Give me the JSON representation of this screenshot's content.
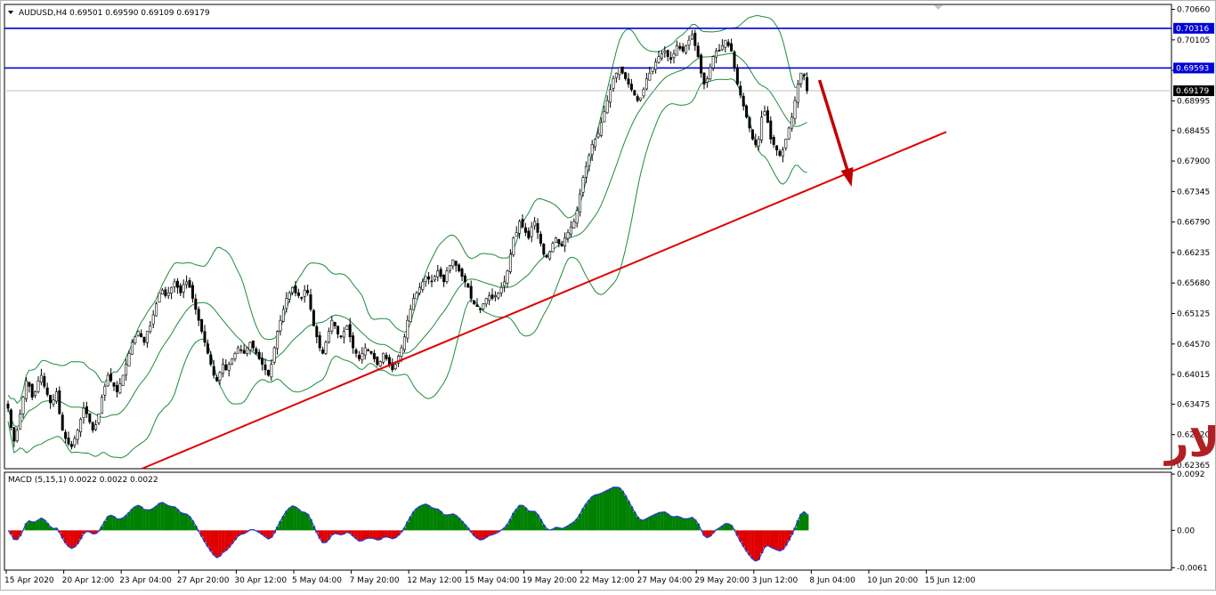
{
  "chart_data": [
    {
      "type": "candlestick",
      "symbol_header": "AUDUSD,H4",
      "ohlc_header": "0.69501 0.69590 0.69109 0.69179",
      "yticks": [
        "0.70660",
        "0.70105",
        "0.69550",
        "0.68995",
        "0.68455",
        "0.67900",
        "0.67345",
        "0.66790",
        "0.66235",
        "0.65680",
        "0.65125",
        "0.64570",
        "0.64015",
        "0.63475",
        "0.62920",
        "0.62365"
      ],
      "ylim": [
        0.623,
        0.7075
      ],
      "xlabels": [
        "15 Apr 2020",
        "20 Apr 12:00",
        "23 Apr 04:00",
        "27 Apr 20:00",
        "30 Apr 12:00",
        "5 May 04:00",
        "7 May 20:00",
        "12 May 12:00",
        "15 May 04:00",
        "19 May 20:00",
        "22 May 12:00",
        "27 May 04:00",
        "29 May 20:00",
        "3 Jun 12:00",
        "8 Jun 04:00",
        "10 Jun 20:00",
        "15 Jun 12:00"
      ],
      "price_labels": [
        {
          "value": 0.70316,
          "text": "0.70316",
          "color": "#0000d8"
        },
        {
          "value": 0.69593,
          "text": "0.69593",
          "color": "#0000d8"
        },
        {
          "value": 0.69179,
          "text": "0.69179",
          "color": "#000000"
        }
      ],
      "horizontal_lines": [
        {
          "value": 0.70316,
          "color": "#0000d8"
        },
        {
          "value": 0.69593,
          "color": "#0000d8"
        },
        {
          "value": 0.69179,
          "color": "#c0c0c0"
        }
      ],
      "trendline": {
        "from": {
          "bar": 0,
          "value": 0.6128
        },
        "to": {
          "bar": 310,
          "value": 0.6843
        },
        "color": "#e00000"
      },
      "annotation_arrow": {
        "color": "#c00000"
      },
      "annotation_text": "أسترالي دولار",
      "bollinger_color": "#1c8c3c",
      "closes": [
        0.634,
        0.6305,
        0.628,
        0.63,
        0.633,
        0.636,
        0.639,
        0.638,
        0.636,
        0.637,
        0.639,
        0.64,
        0.638,
        0.6365,
        0.635,
        0.6355,
        0.637,
        0.633,
        0.63,
        0.6285,
        0.6275,
        0.627,
        0.6285,
        0.63,
        0.632,
        0.634,
        0.633,
        0.6315,
        0.63,
        0.631,
        0.633,
        0.636,
        0.638,
        0.64,
        0.639,
        0.638,
        0.637,
        0.6385,
        0.64,
        0.642,
        0.644,
        0.646,
        0.647,
        0.648,
        0.647,
        0.646,
        0.648,
        0.649,
        0.651,
        0.653,
        0.655,
        0.6555,
        0.6545,
        0.655,
        0.656,
        0.657,
        0.656,
        0.655,
        0.6565,
        0.657,
        0.656,
        0.654,
        0.652,
        0.65,
        0.648,
        0.646,
        0.644,
        0.642,
        0.64,
        0.639,
        0.6405,
        0.642,
        0.641,
        0.642,
        0.643,
        0.644,
        0.645,
        0.6445,
        0.644,
        0.645,
        0.646,
        0.645,
        0.644,
        0.643,
        0.642,
        0.641,
        0.64,
        0.642,
        0.645,
        0.648,
        0.65,
        0.652,
        0.654,
        0.655,
        0.656,
        0.655,
        0.6545,
        0.654,
        0.6555,
        0.655,
        0.652,
        0.649,
        0.647,
        0.645,
        0.644,
        0.646,
        0.648,
        0.65,
        0.649,
        0.6475,
        0.647,
        0.648,
        0.649,
        0.647,
        0.645,
        0.644,
        0.643,
        0.644,
        0.645,
        0.6445,
        0.644,
        0.643,
        0.642,
        0.6425,
        0.644,
        0.643,
        0.642,
        0.641,
        0.642,
        0.6435,
        0.645,
        0.647,
        0.65,
        0.652,
        0.654,
        0.655,
        0.656,
        0.657,
        0.658,
        0.6575,
        0.657,
        0.658,
        0.659,
        0.658,
        0.657,
        0.659,
        0.66,
        0.661,
        0.66,
        0.659,
        0.658,
        0.657,
        0.656,
        0.654,
        0.653,
        0.6525,
        0.652,
        0.653,
        0.654,
        0.6545,
        0.654,
        0.6545,
        0.655,
        0.656,
        0.657,
        0.659,
        0.662,
        0.665,
        0.666,
        0.668,
        0.667,
        0.666,
        0.665,
        0.667,
        0.668,
        0.666,
        0.664,
        0.662,
        0.6615,
        0.6625,
        0.664,
        0.665,
        0.664,
        0.6635,
        0.665,
        0.666,
        0.667,
        0.668,
        0.67,
        0.673,
        0.676,
        0.678,
        0.68,
        0.682,
        0.683,
        0.684,
        0.686,
        0.688,
        0.69,
        0.692,
        0.694,
        0.695,
        0.696,
        0.695,
        0.694,
        0.693,
        0.692,
        0.691,
        0.69,
        0.6905,
        0.692,
        0.694,
        0.695,
        0.696,
        0.697,
        0.698,
        0.6985,
        0.699,
        0.698,
        0.6975,
        0.6985,
        0.7,
        0.6995,
        0.699,
        0.7,
        0.701,
        0.702,
        0.7,
        0.698,
        0.695,
        0.693,
        0.694,
        0.696,
        0.698,
        0.699,
        0.699,
        0.7,
        0.701,
        0.7,
        0.699,
        0.696,
        0.693,
        0.691,
        0.689,
        0.687,
        0.685,
        0.683,
        0.682,
        0.683,
        0.687,
        0.688,
        0.686,
        0.683,
        0.682,
        0.681,
        0.68,
        0.681,
        0.683,
        0.685,
        0.687,
        0.69,
        0.693,
        0.695,
        0.6945,
        0.6918
      ]
    },
    {
      "type": "histogram",
      "title": "MACD (5,15,1) 0.0022 0.0022 0.0022",
      "yticks": [
        "0.0092",
        "0.00",
        "-0.0061"
      ],
      "ylim": [
        -0.0065,
        0.0095
      ],
      "positive_color": "#008000",
      "negative_color": "#e00000",
      "line_color": "#1f3ad8"
    }
  ]
}
